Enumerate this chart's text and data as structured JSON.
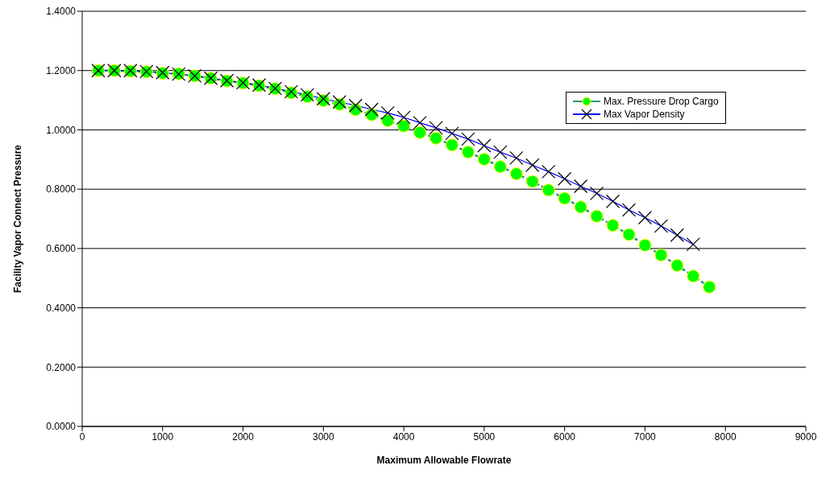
{
  "chart_data": {
    "type": "line",
    "xlabel": "Maximum Allowable Flowrate",
    "ylabel": "Facility Vapor Connect Pressure",
    "x": [
      200,
      400,
      600,
      800,
      1000,
      1200,
      1400,
      1600,
      1800,
      2000,
      2200,
      2400,
      2600,
      2800,
      3000,
      3200,
      3400,
      3600,
      3800,
      4000,
      4200,
      4400,
      4600,
      4800,
      5000,
      5200,
      5400,
      5600,
      5800,
      6000,
      6200,
      6400,
      6600,
      6800,
      7000,
      7200,
      7400,
      7600,
      7800
    ],
    "series": [
      {
        "name": "Max. Pressure Drop Cargo",
        "color": "#00ff00",
        "marker": "circle",
        "line_style": "dashed",
        "values": [
          1.2,
          1.2,
          1.198,
          1.196,
          1.191,
          1.189,
          1.182,
          1.174,
          1.165,
          1.158,
          1.149,
          1.139,
          1.125,
          1.112,
          1.099,
          1.086,
          1.068,
          1.051,
          1.031,
          1.013,
          0.991,
          0.972,
          0.949,
          0.925,
          0.901,
          0.876,
          0.852,
          0.826,
          0.797,
          0.769,
          0.74,
          0.709,
          0.678,
          0.647,
          0.611,
          0.578,
          0.543,
          0.507,
          0.47
        ]
      },
      {
        "name": "Max Vapor Density",
        "color": "#0000ff",
        "marker": "cross",
        "line_style": "solid",
        "values": [
          1.2,
          1.2,
          1.2,
          1.197,
          1.193,
          1.188,
          1.182,
          1.174,
          1.166,
          1.159,
          1.151,
          1.14,
          1.129,
          1.118,
          1.105,
          1.094,
          1.082,
          1.069,
          1.057,
          1.042,
          1.024,
          1.007,
          0.988,
          0.969,
          0.947,
          0.925,
          0.905,
          0.881,
          0.859,
          0.835,
          0.81,
          0.786,
          0.759,
          0.73,
          0.704,
          0.676,
          0.645,
          0.614,
          null
        ]
      }
    ],
    "xlim": [
      0,
      9000
    ],
    "xticks": [
      0,
      1000,
      2000,
      3000,
      4000,
      5000,
      6000,
      7000,
      8000,
      9000
    ],
    "ylim": [
      0,
      1.4
    ],
    "yticks": [
      {
        "value": 0,
        "label": "0.0000"
      },
      {
        "value": 0.2,
        "label": "0.2000"
      },
      {
        "value": 0.4,
        "label": "0.4000"
      },
      {
        "value": 0.6,
        "label": "0.6000"
      },
      {
        "value": 0.8,
        "label": "0.8000"
      },
      {
        "value": 1.0,
        "label": "1.0000"
      },
      {
        "value": 1.2,
        "label": "1.2000"
      },
      {
        "value": 1.4,
        "label": "1.4000"
      }
    ],
    "grid": "y",
    "legend": "top right"
  }
}
